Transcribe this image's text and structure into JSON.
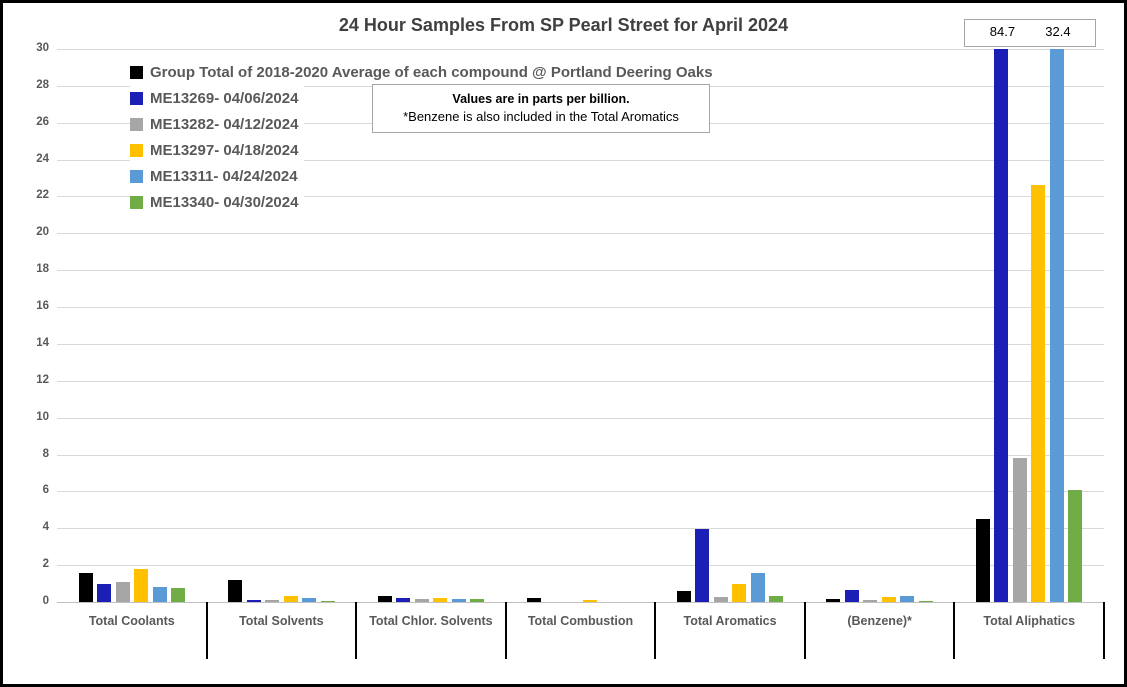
{
  "title": "24 Hour Samples From SP Pearl Street for April 2024",
  "note": {
    "line1": "Values are in parts per billion.",
    "line2": "*Benzene is also included in the Total Aromatics"
  },
  "overflow_labels": [
    "84.7",
    "32.4"
  ],
  "chart_data": {
    "type": "bar",
    "title": "24 Hour Samples From SP Pearl Street for April 2024",
    "xlabel": "",
    "ylabel": "",
    "units": "parts per billion",
    "ylim": [
      0,
      30
    ],
    "ytick_step": 2,
    "grid": true,
    "legend_position": "top-left-inside",
    "categories": [
      "Total Coolants",
      "Total Solvents",
      "Total Chlor. Solvents",
      "Total Combustion",
      "Total Aromatics",
      "(Benzene)*",
      "Total Aliphatics"
    ],
    "series": [
      {
        "name": "Group Total of 2018-2020 Average of each compound @ Portland Deering Oaks",
        "color": "#000000",
        "values": [
          1.55,
          1.2,
          0.35,
          0.2,
          0.6,
          0.15,
          4.5
        ]
      },
      {
        "name": "ME13269- 04/06/2024",
        "color": "#1b1fb5",
        "values": [
          0.95,
          0.1,
          0.2,
          0,
          3.95,
          0.65,
          84.7
        ]
      },
      {
        "name": "ME13282- 04/12/2024",
        "color": "#a6a6a6",
        "values": [
          1.1,
          0.1,
          0.15,
          0,
          0.25,
          0.1,
          7.8
        ]
      },
      {
        "name": "ME13297- 04/18/2024",
        "color": "#ffc000",
        "values": [
          1.8,
          0.35,
          0.2,
          0.1,
          1.0,
          0.25,
          22.6
        ]
      },
      {
        "name": "ME13311- 04/24/2024",
        "color": "#5b9bd5",
        "values": [
          0.8,
          0.2,
          0.15,
          0,
          1.6,
          0.3,
          32.4
        ]
      },
      {
        "name": "ME13340- 04/30/2024",
        "color": "#70ad47",
        "values": [
          0.75,
          0.05,
          0.15,
          0,
          0.3,
          0.05,
          6.1
        ]
      }
    ],
    "clipped_bars_note": "ME13269 and ME13311 Total Aliphatics bars exceed axis; actual values shown in box: 84.7 and 32.4"
  }
}
